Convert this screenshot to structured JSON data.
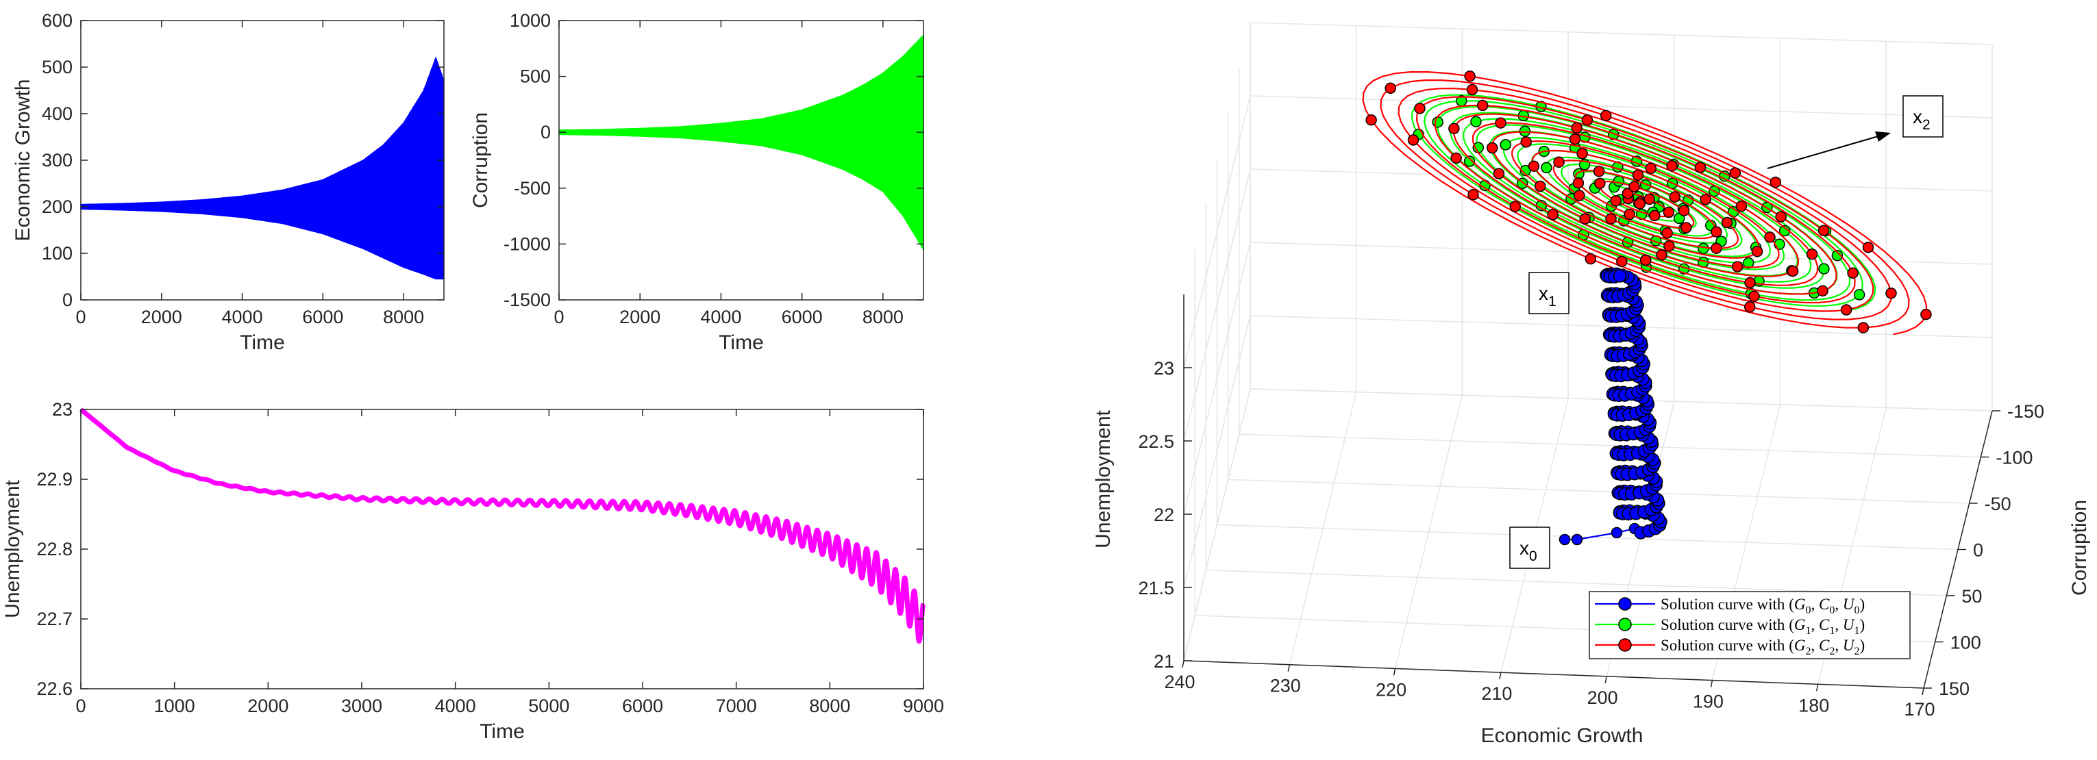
{
  "colors": {
    "economic_growth": "#0000ff",
    "corruption": "#00ff00",
    "unemployment": "#ff00ff",
    "curve_0": "#0000ff",
    "curve_1": "#00ff00",
    "curve_2": "#ff0000",
    "grid": "#e6e6e6",
    "axis": "#262626"
  },
  "chart_data": [
    {
      "id": "economic-growth-vs-time",
      "type": "line",
      "xlabel": "Time",
      "ylabel": "Economic Growth",
      "xlim": [
        0,
        9000
      ],
      "ylim": [
        0,
        600
      ],
      "xticks": [
        0,
        2000,
        4000,
        6000,
        8000
      ],
      "xtick_labels": [
        "0",
        "2000",
        "4000",
        "6000",
        "8000"
      ],
      "yticks": [
        0,
        100,
        200,
        300,
        400,
        500,
        600
      ],
      "ytick_labels": [
        "0",
        "100",
        "200",
        "300",
        "400",
        "500",
        "600"
      ],
      "series": [
        {
          "color_key": "economic_growth",
          "style": "dense oscillation around 200 with growing amplitude",
          "center": 200,
          "envelope": {
            "t": [
              0,
              1000,
              2000,
              3000,
              4000,
              5000,
              6000,
              7000,
              7500,
              8000,
              8500,
              8800,
              9000
            ],
            "upper": [
              205,
              207,
              210,
              215,
              223,
              236,
              258,
              300,
              333,
              380,
              450,
              520,
              470
            ],
            "lower": [
              195,
              193,
              190,
              185,
              177,
              164,
              142,
              110,
              90,
              70,
              55,
              45,
              45
            ]
          }
        }
      ]
    },
    {
      "id": "corruption-vs-time",
      "type": "line",
      "xlabel": "Time",
      "ylabel": "Corruption",
      "xlim": [
        0,
        9000
      ],
      "ylim": [
        -1500,
        1000
      ],
      "xticks": [
        0,
        2000,
        4000,
        6000,
        8000
      ],
      "xtick_labels": [
        "0",
        "2000",
        "4000",
        "6000",
        "8000"
      ],
      "yticks": [
        -1500,
        -1000,
        -500,
        0,
        500,
        1000
      ],
      "ytick_labels": [
        "-1500",
        "-1000",
        "-500",
        "0",
        "500",
        "1000"
      ],
      "series": [
        {
          "color_key": "corruption",
          "style": "dense oscillation around 0 with growing amplitude",
          "center": 0,
          "envelope": {
            "t": [
              0,
              1000,
              2000,
              3000,
              4000,
              5000,
              6000,
              7000,
              7500,
              8000,
              8500,
              9000
            ],
            "upper": [
              20,
              25,
              35,
              50,
              80,
              120,
              200,
              330,
              420,
              530,
              680,
              870
            ],
            "lower": [
              -20,
              -25,
              -35,
              -50,
              -80,
              -120,
              -200,
              -330,
              -420,
              -530,
              -750,
              -1050
            ]
          }
        }
      ]
    },
    {
      "id": "unemployment-vs-time",
      "type": "line",
      "xlabel": "Time",
      "ylabel": "Unemployment",
      "xlim": [
        0,
        9000
      ],
      "ylim": [
        22.6,
        23
      ],
      "xticks": [
        0,
        1000,
        2000,
        3000,
        4000,
        5000,
        6000,
        7000,
        8000,
        9000
      ],
      "xtick_labels": [
        "0",
        "1000",
        "2000",
        "3000",
        "4000",
        "5000",
        "6000",
        "7000",
        "8000",
        "9000"
      ],
      "yticks": [
        22.6,
        22.7,
        22.8,
        22.9,
        23
      ],
      "ytick_labels": [
        "22.6",
        "22.7",
        "22.8",
        "22.9",
        "23"
      ],
      "series": [
        {
          "color_key": "unemployment",
          "style": "decay from 23 toward 22.87, then oscillation of growing amplitude with downward drift",
          "trend": {
            "t": [
              0,
              500,
              1000,
              1500,
              2000,
              3000,
              4000,
              5000,
              6000,
              6500,
              7000,
              7500,
              8000,
              8500,
              8800,
              9000
            ],
            "u": [
              23.0,
              22.945,
              22.912,
              22.893,
              22.882,
              22.872,
              22.868,
              22.866,
              22.862,
              22.855,
              22.845,
              22.828,
              22.805,
              22.77,
              22.73,
              22.69
            ]
          },
          "oscillation_amplitude": {
            "t": [
              0,
              2000,
              3000,
              4000,
              5000,
              6000,
              7000,
              8000,
              8500,
              9000
            ],
            "a": [
              0,
              0.001,
              0.002,
              0.003,
              0.004,
              0.006,
              0.01,
              0.017,
              0.025,
              0.032
            ]
          }
        }
      ]
    },
    {
      "id": "phase-portrait-3d",
      "type": "line",
      "projection": "3d",
      "xlabel": "Economic Growth",
      "ylabel": "Corruption",
      "zlabel": "Unemployment",
      "xlim": [
        170,
        240
      ],
      "ylim": [
        -150,
        150
      ],
      "zlim": [
        21,
        23.5
      ],
      "xticks": [
        240,
        230,
        220,
        210,
        200,
        190,
        180,
        170
      ],
      "xtick_labels": [
        "240",
        "230",
        "220",
        "210",
        "200",
        "190",
        "180",
        "170"
      ],
      "yticks": [
        -150,
        -100,
        -50,
        0,
        50,
        100,
        150
      ],
      "ytick_labels": [
        "-150",
        "-100",
        "-50",
        "0",
        "50",
        "100",
        "150"
      ],
      "zticks": [
        21,
        21.5,
        22,
        22.5,
        23
      ],
      "ztick_labels": [
        "21",
        "21.5",
        "22",
        "22.5",
        "23"
      ],
      "series": [
        {
          "color_key": "curve_0",
          "legend_prefix": "Solution curve with ",
          "legend_math": [
            "G",
            "0",
            "C",
            "0",
            "U",
            "0"
          ],
          "style": "helical spiral rising from x0 near (200, 10, 21.7) up to the plane near U=23.3",
          "start": {
            "G": 200,
            "C": 10,
            "U": 21.7
          },
          "end": {
            "G": 200,
            "C": 0,
            "U": 23.3
          }
        },
        {
          "color_key": "curve_1",
          "legend_prefix": "Solution curve with ",
          "legend_math": [
            "G",
            "1",
            "C",
            "1",
            "U",
            "1"
          ],
          "style": "planar spiral near U=23.3 winding out from x1",
          "center": {
            "G": 200,
            "C": 0,
            "U": 23.3
          }
        },
        {
          "color_key": "curve_2",
          "legend_prefix": "Solution curve with ",
          "legend_math": [
            "G",
            "2",
            "C",
            "2",
            "U",
            "2"
          ],
          "style": "planar spiral near U=23.3 with largest amplitude, from x2",
          "center": {
            "G": 200,
            "C": 0,
            "U": 23.3
          }
        }
      ],
      "annotations": [
        {
          "base": "x",
          "sub": "0"
        },
        {
          "base": "x",
          "sub": "1"
        },
        {
          "base": "x",
          "sub": "2"
        }
      ],
      "legend_position": "bottom-right",
      "grid": true
    }
  ]
}
